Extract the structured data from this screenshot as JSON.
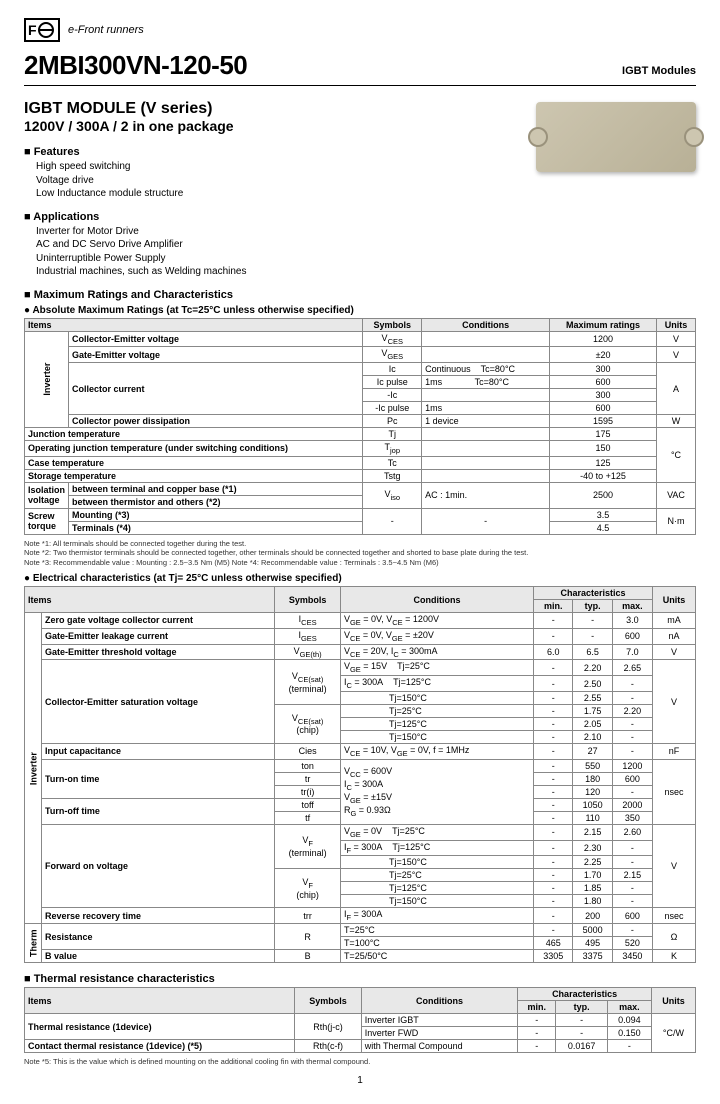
{
  "brand": "e-Front runners",
  "logo": "FC",
  "part_number": "2MBI300VN-120-50",
  "category": "IGBT Modules",
  "series_title": "IGBT MODULE (V series)",
  "spec_line": "1200V / 300A / 2 in one package",
  "features_title": "Features",
  "features": [
    "High speed switching",
    "Voltage drive",
    "Low Inductance module structure"
  ],
  "applications_title": "Applications",
  "applications": [
    "Inverter for Motor Drive",
    "AC and DC Servo Drive Amplifier",
    "Uninterruptible Power Supply",
    "Industrial machines, such as Welding machines"
  ],
  "max_ratings_title": "Maximum Ratings and Characteristics",
  "abs_max_title": "Absolute Maximum Ratings (at Tc=25°C unless otherwise specified)",
  "abs_headers": [
    "Items",
    "Symbols",
    "Conditions",
    "Maximum ratings",
    "Units"
  ],
  "abs_rows": [
    {
      "group": "Inverter",
      "item": "Collector-Emitter voltage",
      "sym": "Vᴄᴇs",
      "cond": "",
      "max": "1200",
      "unit": "V"
    },
    {
      "group": "",
      "item": "Gate-Emitter voltage",
      "sym": "Vɢᴇs",
      "cond": "",
      "max": "±20",
      "unit": "V"
    },
    {
      "group": "",
      "item": "Collector current",
      "sym": "Ic",
      "cond": "Continuous     Tc=80°C",
      "max": "300",
      "unit": "A"
    },
    {
      "group": "",
      "item": "",
      "sym": "Ic pulse",
      "cond": "1ms              Tc=80°C",
      "max": "600",
      "unit": ""
    },
    {
      "group": "",
      "item": "",
      "sym": "-Ic",
      "cond": "",
      "max": "300",
      "unit": ""
    },
    {
      "group": "",
      "item": "",
      "sym": "-Ic pulse",
      "cond": "1ms",
      "max": "600",
      "unit": ""
    },
    {
      "group": "",
      "item": "Collector power dissipation",
      "sym": "Pc",
      "cond": "1 device",
      "max": "1595",
      "unit": "W"
    },
    {
      "group": "none",
      "item": "Junction temperature",
      "sym": "Tj",
      "cond": "",
      "max": "175",
      "unit": "°C"
    },
    {
      "group": "",
      "item": "Operating junction temperature (under switching conditions)",
      "sym": "Tⱼₒₚ",
      "cond": "",
      "max": "150",
      "unit": ""
    },
    {
      "group": "",
      "item": "Case temperature",
      "sym": "Tc",
      "cond": "",
      "max": "125",
      "unit": ""
    },
    {
      "group": "",
      "item": "Storage temperature",
      "sym": "Tstg",
      "cond": "",
      "max": "-40 to +125",
      "unit": ""
    },
    {
      "group": "",
      "item": "Isolation voltage",
      "sub": "between terminal and copper base (*1)",
      "sym": "Vᵢₛₒ",
      "cond": "AC : 1min.",
      "max": "2500",
      "unit": "VAC"
    },
    {
      "group": "",
      "item": "",
      "sub": "between thermistor and others (*2)",
      "sym": "",
      "cond": "",
      "max": "",
      "unit": ""
    },
    {
      "group": "",
      "item": "Screw torque",
      "sub": "Mounting (*3)",
      "sym": "-",
      "cond": "-",
      "max": "3.5",
      "unit": "N·m"
    },
    {
      "group": "",
      "item": "",
      "sub": "Terminals (*4)",
      "sym": "",
      "cond": "",
      "max": "4.5",
      "unit": ""
    }
  ],
  "notes1": [
    "Note *1: All terminals should be connected together during the test.",
    "Note *2: Two thermistor terminals should be connected together, other terminals should be connected together and shorted to base plate during the test.",
    "Note *3: Recommendable value : Mounting : 2.5~3.5 Nm (M5)    Note *4: Recommendable value : Terminals : 3.5~4.5 Nm (M6)"
  ],
  "elec_title": "Electrical characteristics  (at Tj= 25°C unless otherwise specified)",
  "elec_headers": [
    "Items",
    "Symbols",
    "Conditions",
    "min.",
    "typ.",
    "max.",
    "Units"
  ],
  "char_label": "Characteristics",
  "elec_rows": [
    {
      "g": "Inverter",
      "item": "Zero gate voltage collector current",
      "sym": "Iᴄᴇs",
      "cond": "Vɢᴇ = 0V, Vᴄᴇ = 1200V",
      "min": "-",
      "typ": "-",
      "max": "3.0",
      "unit": "mA"
    },
    {
      "g": "",
      "item": "Gate-Emitter leakage current",
      "sym": "Iɢᴇs",
      "cond": "Vᴄᴇ = 0V, Vɢᴇ = ±20V",
      "min": "-",
      "typ": "-",
      "max": "600",
      "unit": "nA"
    },
    {
      "g": "",
      "item": "Gate-Emitter threshold voltage",
      "sym": "Vɢᴇ(th)",
      "cond": "Vᴄᴇ = 20V, Iᴄ = 300mA",
      "min": "6.0",
      "typ": "6.5",
      "max": "7.0",
      "unit": "V"
    },
    {
      "g": "",
      "item": "Collector-Emitter saturation voltage",
      "sym": "Vᴄᴇ(sat) (terminal)",
      "cond": "Vɢᴇ = 15V, Iᴄ = 300A    Tj=25°C",
      "min": "-",
      "typ": "2.20",
      "max": "2.65",
      "unit": "V"
    },
    {
      "g": "",
      "item": "",
      "sym": "",
      "cond": "Tj=125°C",
      "min": "-",
      "typ": "2.50",
      "max": "-",
      "unit": ""
    },
    {
      "g": "",
      "item": "",
      "sym": "",
      "cond": "Tj=150°C",
      "min": "-",
      "typ": "2.55",
      "max": "-",
      "unit": ""
    },
    {
      "g": "",
      "item": "",
      "sym": "Vᴄᴇ(sat) (chip)",
      "cond": "Tj=25°C",
      "min": "-",
      "typ": "1.75",
      "max": "2.20",
      "unit": ""
    },
    {
      "g": "",
      "item": "",
      "sym": "",
      "cond": "Tj=125°C",
      "min": "-",
      "typ": "2.05",
      "max": "-",
      "unit": ""
    },
    {
      "g": "",
      "item": "",
      "sym": "",
      "cond": "Tj=150°C",
      "min": "-",
      "typ": "2.10",
      "max": "-",
      "unit": ""
    },
    {
      "g": "",
      "item": "Input capacitance",
      "sym": "Cies",
      "cond": "Vᴄᴇ = 10V, Vɢᴇ = 0V, f = 1MHz",
      "min": "-",
      "typ": "27",
      "max": "-",
      "unit": "nF"
    },
    {
      "g": "",
      "item": "Turn-on time",
      "sym": "ton",
      "cond": "Vᴄᴄ = 600V, Iᴄ = 300A, Vɢᴇ = ±15V, Rɢ = 0.93Ω",
      "min": "-",
      "typ": "550",
      "max": "1200",
      "unit": "nsec"
    },
    {
      "g": "",
      "item": "",
      "sym": "tr",
      "cond": "",
      "min": "-",
      "typ": "180",
      "max": "600",
      "unit": ""
    },
    {
      "g": "",
      "item": "",
      "sym": "tr(i)",
      "cond": "",
      "min": "-",
      "typ": "120",
      "max": "-",
      "unit": ""
    },
    {
      "g": "",
      "item": "Turn-off time",
      "sym": "toff",
      "cond": "",
      "min": "-",
      "typ": "1050",
      "max": "2000",
      "unit": ""
    },
    {
      "g": "",
      "item": "",
      "sym": "tf",
      "cond": "",
      "min": "-",
      "typ": "110",
      "max": "350",
      "unit": ""
    },
    {
      "g": "",
      "item": "Forward on voltage",
      "sym": "Vғ (terminal)",
      "cond": "Vɢᴇ = 0V, Iғ = 300A    Tj=25°C",
      "min": "-",
      "typ": "2.15",
      "max": "2.60",
      "unit": "V"
    },
    {
      "g": "",
      "item": "",
      "sym": "",
      "cond": "Tj=125°C",
      "min": "-",
      "typ": "2.30",
      "max": "-",
      "unit": ""
    },
    {
      "g": "",
      "item": "",
      "sym": "",
      "cond": "Tj=150°C",
      "min": "-",
      "typ": "2.25",
      "max": "-",
      "unit": ""
    },
    {
      "g": "",
      "item": "",
      "sym": "Vғ (chip)",
      "cond": "Tj=25°C",
      "min": "-",
      "typ": "1.70",
      "max": "2.15",
      "unit": ""
    },
    {
      "g": "",
      "item": "",
      "sym": "",
      "cond": "Tj=125°C",
      "min": "-",
      "typ": "1.85",
      "max": "-",
      "unit": ""
    },
    {
      "g": "",
      "item": "",
      "sym": "",
      "cond": "Tj=150°C",
      "min": "-",
      "typ": "1.80",
      "max": "-",
      "unit": ""
    },
    {
      "g": "",
      "item": "Reverse recovery time",
      "sym": "trr",
      "cond": "Iғ = 300A",
      "min": "-",
      "typ": "200",
      "max": "600",
      "unit": "nsec"
    },
    {
      "g": "Therm",
      "item": "Resistance",
      "sym": "R",
      "cond": "T=25°C",
      "min": "-",
      "typ": "5000",
      "max": "-",
      "unit": "Ω"
    },
    {
      "g": "",
      "item": "",
      "sym": "",
      "cond": "T=100°C",
      "min": "465",
      "typ": "495",
      "max": "520",
      "unit": ""
    },
    {
      "g": "",
      "item": "B value",
      "sym": "B",
      "cond": "T=25/50°C",
      "min": "3305",
      "typ": "3375",
      "max": "3450",
      "unit": "K"
    }
  ],
  "thermal_title": "Thermal resistance characteristics",
  "thermal_rows": [
    {
      "item": "Thermal resistance (1device)",
      "sym": "Rth(j-c)",
      "cond": "Inverter IGBT",
      "min": "-",
      "typ": "-",
      "max": "0.094",
      "unit": "°C/W"
    },
    {
      "item": "",
      "sym": "",
      "cond": "Inverter FWD",
      "min": "-",
      "typ": "-",
      "max": "0.150",
      "unit": ""
    },
    {
      "item": "Contact thermal resistance (1device) (*5)",
      "sym": "Rth(c-f)",
      "cond": "with Thermal Compound",
      "min": "-",
      "typ": "0.0167",
      "max": "-",
      "unit": ""
    }
  ],
  "notes2": "Note *5: This is the value which is defined mounting on the additional cooling fin with thermal compound.",
  "page_num": "1"
}
